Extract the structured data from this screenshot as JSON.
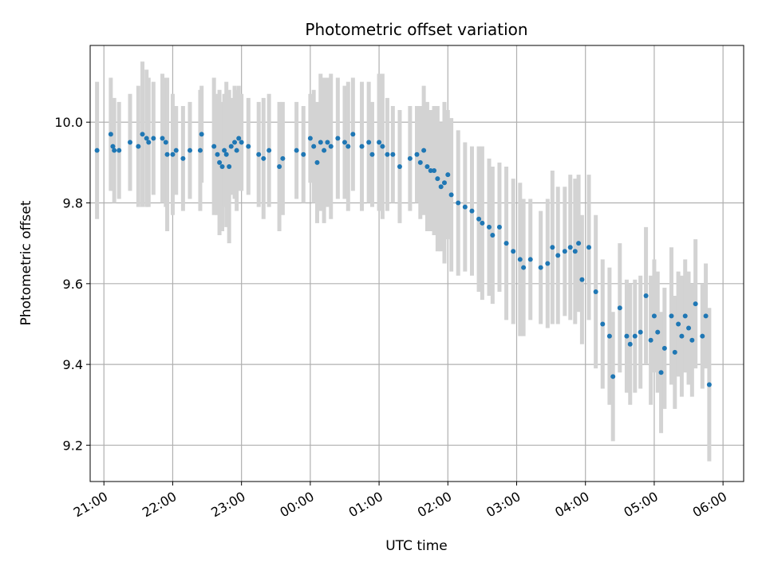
{
  "chart_data": {
    "type": "scatter",
    "title": "Photometric offset variation",
    "xlabel": "UTC time",
    "ylabel": "Photometric offset",
    "grid": true,
    "colors": {
      "points": "#1f77b4",
      "errorbars": "#d3d3d3",
      "grid": "#b0b0b0"
    },
    "x_unit": "hours after 21:00 UTC",
    "xlim": [
      -0.2,
      9.3
    ],
    "ylim": [
      9.11,
      10.19
    ],
    "x_ticks": [
      {
        "value": 0,
        "label": "21:00"
      },
      {
        "value": 1,
        "label": "22:00"
      },
      {
        "value": 2,
        "label": "23:00"
      },
      {
        "value": 3,
        "label": "00:00"
      },
      {
        "value": 4,
        "label": "01:00"
      },
      {
        "value": 5,
        "label": "02:00"
      },
      {
        "value": 6,
        "label": "03:00"
      },
      {
        "value": 7,
        "label": "04:00"
      },
      {
        "value": 8,
        "label": "05:00"
      },
      {
        "value": 9,
        "label": "06:00"
      }
    ],
    "y_ticks": [
      {
        "value": 9.2,
        "label": "9.2"
      },
      {
        "value": 9.4,
        "label": "9.4"
      },
      {
        "value": 9.6,
        "label": "9.6"
      },
      {
        "value": 9.8,
        "label": "9.8"
      },
      {
        "value": 10.0,
        "label": "10.0"
      }
    ],
    "series": [
      {
        "points": [
          [
            -0.1,
            9.93,
            0.17
          ],
          [
            0.1,
            9.97,
            0.14
          ],
          [
            0.13,
            9.94,
            0.11
          ],
          [
            0.15,
            9.93,
            0.13
          ],
          [
            0.22,
            9.93,
            0.12
          ],
          [
            0.38,
            9.95,
            0.12
          ],
          [
            0.5,
            9.94,
            0.15
          ],
          [
            0.56,
            9.97,
            0.18
          ],
          [
            0.62,
            9.96,
            0.17
          ],
          [
            0.65,
            9.95,
            0.16
          ],
          [
            0.72,
            9.96,
            0.14
          ],
          [
            0.85,
            9.96,
            0.16
          ],
          [
            0.9,
            9.95,
            0.16
          ],
          [
            0.92,
            9.92,
            0.19
          ],
          [
            1.0,
            9.92,
            0.15
          ],
          [
            1.05,
            9.93,
            0.11
          ],
          [
            1.15,
            9.91,
            0.13
          ],
          [
            1.25,
            9.93,
            0.12
          ],
          [
            1.4,
            9.93,
            0.15
          ],
          [
            1.42,
            9.97,
            0.12
          ],
          [
            1.6,
            9.94,
            0.17
          ],
          [
            1.65,
            9.92,
            0.15
          ],
          [
            1.68,
            9.9,
            0.18
          ],
          [
            1.72,
            9.89,
            0.16
          ],
          [
            1.75,
            9.93,
            0.14
          ],
          [
            1.78,
            9.92,
            0.18
          ],
          [
            1.82,
            9.89,
            0.19
          ],
          [
            1.85,
            9.94,
            0.12
          ],
          [
            1.9,
            9.95,
            0.14
          ],
          [
            1.93,
            9.93,
            0.15
          ],
          [
            1.96,
            9.96,
            0.13
          ],
          [
            2.0,
            9.95,
            0.12
          ],
          [
            2.1,
            9.94,
            0.12
          ],
          [
            2.25,
            9.92,
            0.13
          ],
          [
            2.32,
            9.91,
            0.15
          ],
          [
            2.4,
            9.93,
            0.14
          ],
          [
            2.55,
            9.89,
            0.16
          ],
          [
            2.6,
            9.91,
            0.14
          ],
          [
            2.8,
            9.93,
            0.12
          ],
          [
            2.9,
            9.92,
            0.12
          ],
          [
            3.0,
            9.96,
            0.11
          ],
          [
            3.05,
            9.94,
            0.14
          ],
          [
            3.1,
            9.9,
            0.15
          ],
          [
            3.15,
            9.95,
            0.17
          ],
          [
            3.2,
            9.93,
            0.18
          ],
          [
            3.25,
            9.95,
            0.16
          ],
          [
            3.3,
            9.94,
            0.18
          ],
          [
            3.4,
            9.96,
            0.15
          ],
          [
            3.5,
            9.95,
            0.14
          ],
          [
            3.55,
            9.94,
            0.16
          ],
          [
            3.62,
            9.97,
            0.14
          ],
          [
            3.75,
            9.94,
            0.16
          ],
          [
            3.85,
            9.95,
            0.15
          ],
          [
            3.9,
            9.92,
            0.13
          ],
          [
            4.0,
            9.95,
            0.17
          ],
          [
            4.05,
            9.94,
            0.18
          ],
          [
            4.12,
            9.92,
            0.14
          ],
          [
            4.2,
            9.92,
            0.12
          ],
          [
            4.3,
            9.89,
            0.14
          ],
          [
            4.45,
            9.91,
            0.13
          ],
          [
            4.55,
            9.92,
            0.12
          ],
          [
            4.6,
            9.9,
            0.14
          ],
          [
            4.65,
            9.93,
            0.16
          ],
          [
            4.7,
            9.89,
            0.16
          ],
          [
            4.75,
            9.88,
            0.15
          ],
          [
            4.8,
            9.88,
            0.16
          ],
          [
            4.85,
            9.86,
            0.18
          ],
          [
            4.9,
            9.84,
            0.16
          ],
          [
            4.95,
            9.85,
            0.2
          ],
          [
            5.0,
            9.87,
            0.16
          ],
          [
            5.05,
            9.82,
            0.19
          ],
          [
            5.15,
            9.8,
            0.18
          ],
          [
            5.25,
            9.79,
            0.16
          ],
          [
            5.35,
            9.78,
            0.16
          ],
          [
            5.45,
            9.76,
            0.18
          ],
          [
            5.5,
            9.75,
            0.19
          ],
          [
            5.6,
            9.74,
            0.17
          ],
          [
            5.65,
            9.72,
            0.17
          ],
          [
            5.75,
            9.74,
            0.16
          ],
          [
            5.85,
            9.7,
            0.19
          ],
          [
            5.95,
            9.68,
            0.18
          ],
          [
            6.05,
            9.66,
            0.19
          ],
          [
            6.1,
            9.64,
            0.17
          ],
          [
            6.2,
            9.66,
            0.15
          ],
          [
            6.35,
            9.64,
            0.14
          ],
          [
            6.45,
            9.65,
            0.16
          ],
          [
            6.52,
            9.69,
            0.19
          ],
          [
            6.6,
            9.67,
            0.17
          ],
          [
            6.7,
            9.68,
            0.16
          ],
          [
            6.78,
            9.69,
            0.18
          ],
          [
            6.85,
            9.68,
            0.18
          ],
          [
            6.9,
            9.7,
            0.17
          ],
          [
            6.95,
            9.61,
            0.16
          ],
          [
            7.05,
            9.69,
            0.18
          ],
          [
            7.15,
            9.58,
            0.19
          ],
          [
            7.25,
            9.5,
            0.16
          ],
          [
            7.35,
            9.47,
            0.17
          ],
          [
            7.4,
            9.37,
            0.16
          ],
          [
            7.5,
            9.54,
            0.16
          ],
          [
            7.6,
            9.47,
            0.14
          ],
          [
            7.65,
            9.45,
            0.15
          ],
          [
            7.72,
            9.47,
            0.14
          ],
          [
            7.8,
            9.48,
            0.14
          ],
          [
            7.88,
            9.57,
            0.17
          ],
          [
            7.95,
            9.46,
            0.16
          ],
          [
            8.0,
            9.52,
            0.14
          ],
          [
            8.05,
            9.48,
            0.15
          ],
          [
            8.1,
            9.38,
            0.15
          ],
          [
            8.15,
            9.44,
            0.15
          ],
          [
            8.25,
            9.52,
            0.17
          ],
          [
            8.3,
            9.43,
            0.14
          ],
          [
            8.35,
            9.5,
            0.13
          ],
          [
            8.4,
            9.47,
            0.15
          ],
          [
            8.45,
            9.52,
            0.14
          ],
          [
            8.5,
            9.49,
            0.14
          ],
          [
            8.55,
            9.46,
            0.14
          ],
          [
            8.6,
            9.55,
            0.16
          ],
          [
            8.7,
            9.47,
            0.13
          ],
          [
            8.75,
            9.52,
            0.13
          ],
          [
            8.8,
            9.35,
            0.19
          ]
        ]
      }
    ]
  }
}
